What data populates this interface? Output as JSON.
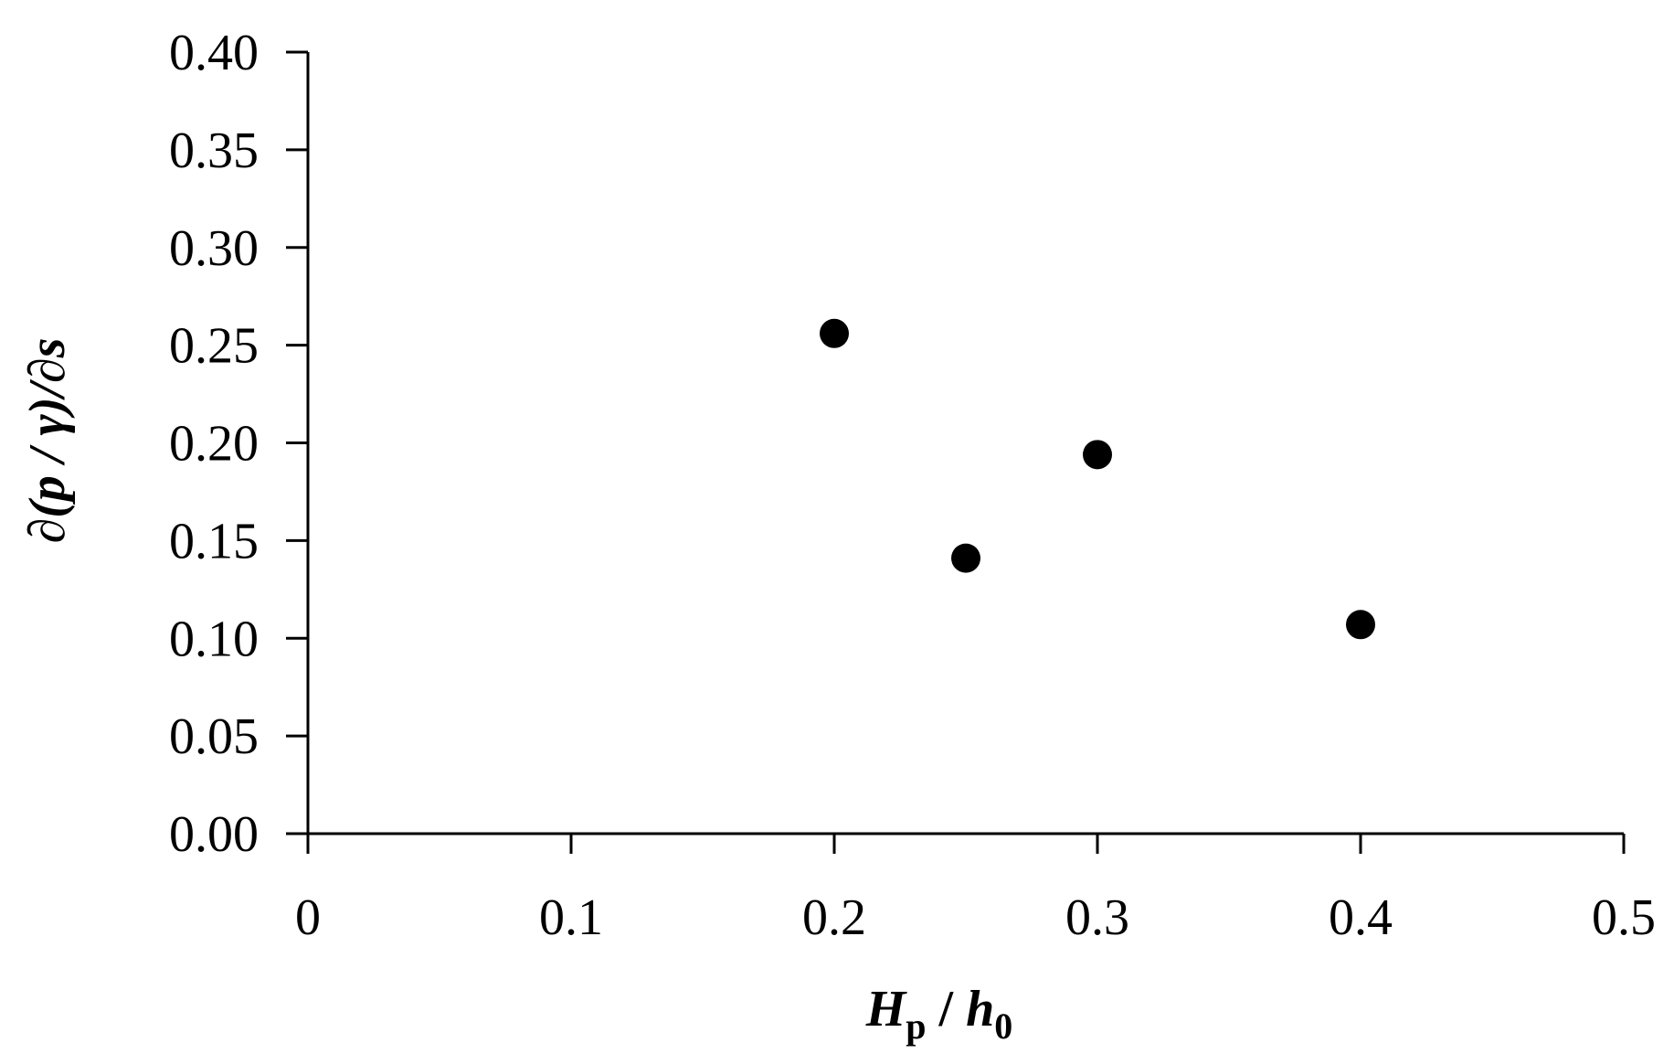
{
  "chart_data": {
    "type": "scatter",
    "x_axis": {
      "ticks": [
        0,
        0.1,
        0.2,
        0.3,
        0.4,
        0.5
      ],
      "tick_labels": [
        "0",
        "0.1",
        "0.2",
        "0.3",
        "0.4",
        "0.5"
      ],
      "range": [
        0,
        0.5
      ],
      "label": {
        "main": "H",
        "main_sub": "p",
        "sep": " / ",
        "denom": "h",
        "denom_sub": "0"
      }
    },
    "y_axis": {
      "ticks": [
        0,
        0.05,
        0.1,
        0.15,
        0.2,
        0.25,
        0.3,
        0.35,
        0.4
      ],
      "tick_labels": [
        "0.00",
        "0.05",
        "0.10",
        "0.15",
        "0.20",
        "0.25",
        "0.30",
        "0.35",
        "0.40"
      ],
      "range": [
        0,
        0.4
      ],
      "label": "∂(p / γ)/∂s"
    },
    "series": [
      {
        "color": "#000000",
        "marker": "circle",
        "points": [
          {
            "x": 0.2,
            "y": 0.256
          },
          {
            "x": 0.25,
            "y": 0.141
          },
          {
            "x": 0.3,
            "y": 0.194
          },
          {
            "x": 0.4,
            "y": 0.107
          }
        ]
      }
    ],
    "grid": false,
    "legend": "none"
  }
}
